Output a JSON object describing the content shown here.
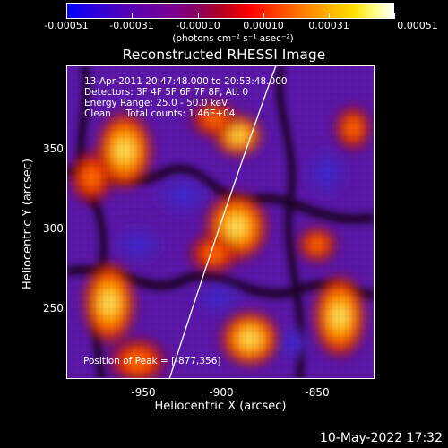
{
  "colorbar": {
    "ticks": [
      "-0.00051",
      "-0.00031",
      "-0.00010",
      "0.00010",
      "0.00031",
      "0.00051"
    ],
    "unit_label": "(photons cm⁻² s⁻¹ asec⁻²)"
  },
  "plot": {
    "title": "Reconstructed RHESSI Image",
    "xlabel": "Heliocentric X (arcsec)",
    "ylabel": "Heliocentric Y (arcsec)",
    "x_ticks": [
      "-950",
      "-900",
      "-850"
    ],
    "y_ticks": [
      "350",
      "300",
      "250"
    ],
    "annotation_lines": [
      "13-Apr-2011 20:47:48.000 to 20:53:48.000",
      "Detectors: 3F 4F 5F 6F 7F 8F, Att 0",
      "Energy Range: 25.0 - 50.0 keV",
      "Clean     Total counts: 1.46E+04"
    ],
    "peak_text": "Position of Peak = [-877,356]"
  },
  "footer": {
    "timestamp": "10-May-2022 17:32"
  }
}
